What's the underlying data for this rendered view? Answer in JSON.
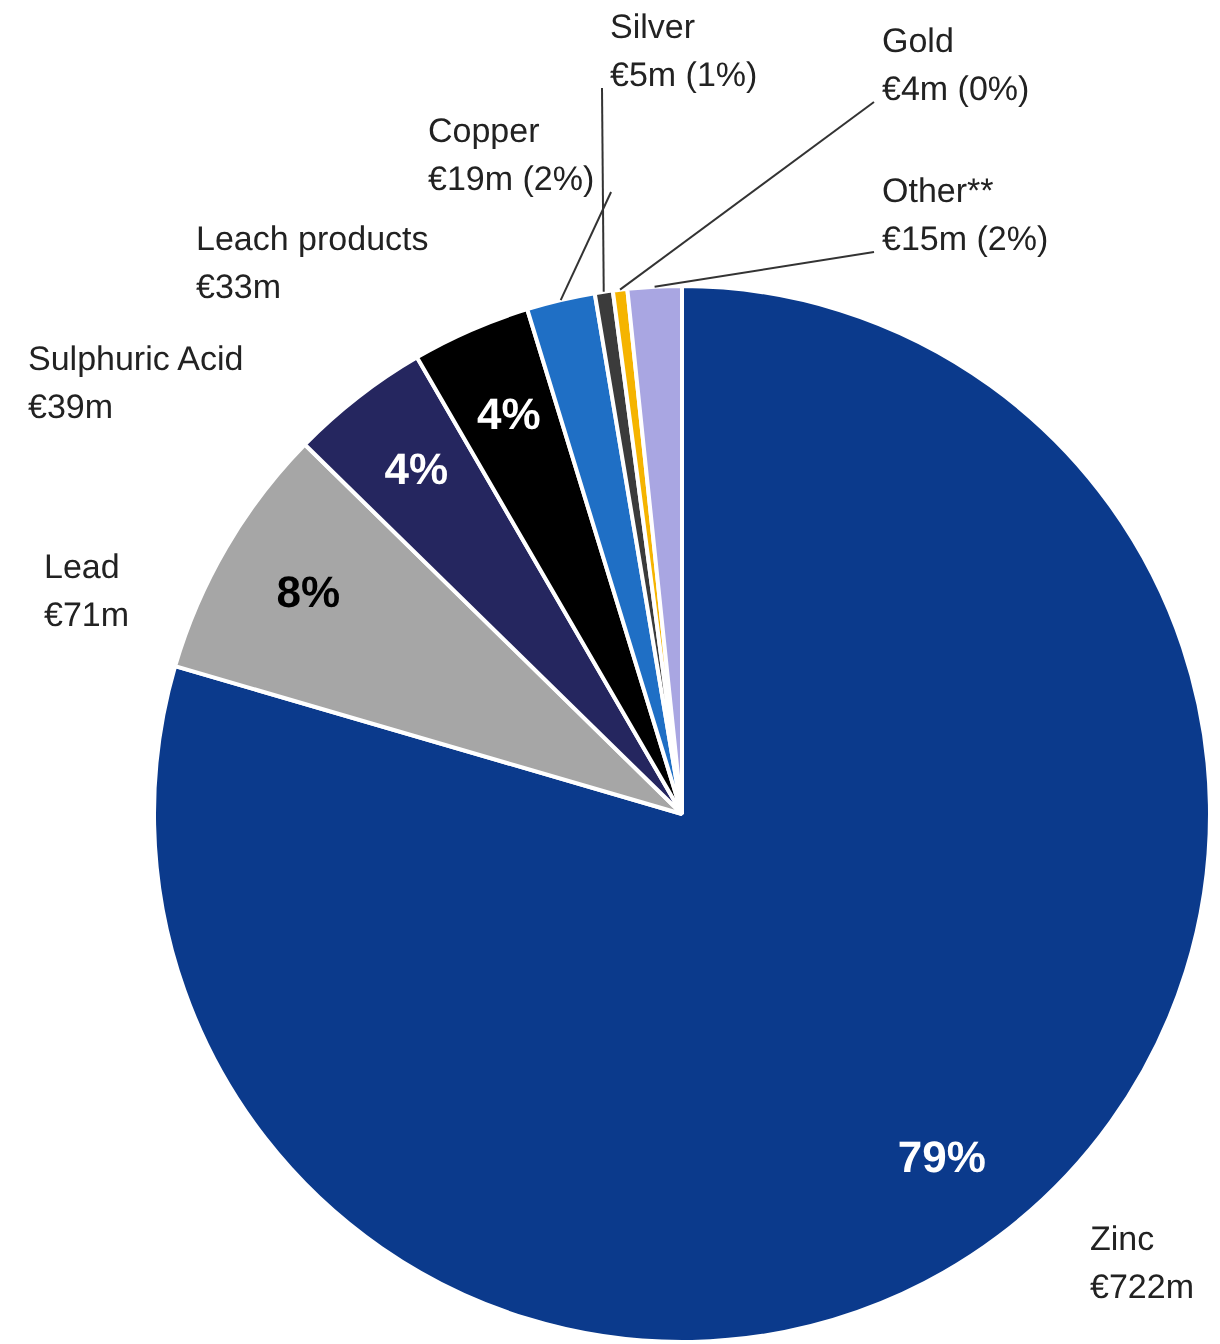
{
  "chart_data": {
    "type": "pie",
    "categories": [
      "Zinc",
      "Lead",
      "Sulphuric Acid",
      "Leach products",
      "Copper",
      "Silver",
      "Gold",
      "Other**"
    ],
    "values": [
      722,
      71,
      39,
      33,
      19,
      5,
      4,
      15
    ],
    "colors": [
      "#0b3a8c",
      "#a6a6a6",
      "#25265f",
      "#000000",
      "#1f6fc5",
      "#3b3b3b",
      "#f5b400",
      "#a9a6e2"
    ],
    "value_labels": [
      "€722m",
      "€71m",
      "€39m",
      "€33m",
      "€19m",
      "€5m",
      "€4m",
      "€15m"
    ],
    "annotations": [
      {
        "text": "79%",
        "x": "Zinc"
      },
      {
        "text": "8%",
        "x": "Lead"
      },
      {
        "text": "4%",
        "x": "Sulphuric Acid"
      },
      {
        "text": "4%",
        "x": "Leach products"
      },
      {
        "text": "(2%)",
        "x": "Copper"
      },
      {
        "text": "(1%)",
        "x": "Silver"
      },
      {
        "text": "(0%)",
        "x": "Gold"
      },
      {
        "text": "(2%)",
        "x": "Other**"
      }
    ],
    "legend": false
  }
}
